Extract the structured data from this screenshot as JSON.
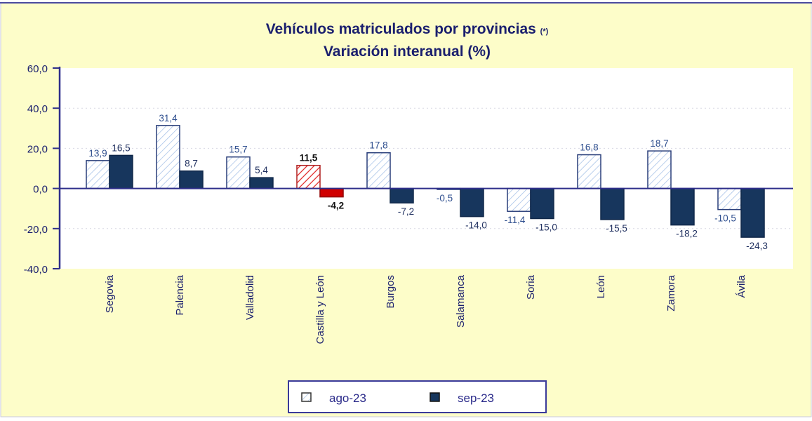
{
  "chart_data": {
    "type": "bar",
    "title": "Vehículos matriculados por provincias",
    "title_note": "(*)",
    "subtitle": "Variación interanual (%)",
    "categories": [
      "Segovia",
      "Palencia",
      "Valladolid",
      "Castilla y León",
      "Burgos",
      "Salamanca",
      "Soria",
      "León",
      "Zamora",
      "Ávila"
    ],
    "series": [
      {
        "name": "ago-23",
        "values": [
          13.9,
          31.4,
          15.7,
          11.5,
          17.8,
          -0.5,
          -11.4,
          16.8,
          18.7,
          -10.5
        ]
      },
      {
        "name": "sep-23",
        "values": [
          16.5,
          8.7,
          5.4,
          -4.2,
          -7.2,
          -14.0,
          -15.0,
          -15.5,
          -18.2,
          -24.3
        ]
      }
    ],
    "value_labels": {
      "ago-23": [
        "13,9",
        "31,4",
        "15,7",
        "11,5",
        "17,8",
        "-0,5",
        "-11,4",
        "16,8",
        "18,7",
        "-10,5"
      ],
      "sep-23": [
        "16,5",
        "8,7",
        "5,4",
        "-4,2",
        "-7,2",
        "-14,0",
        "-15,0",
        "-15,5",
        "-18,2",
        "-24,3"
      ]
    },
    "highlight_category": "Castilla y León",
    "ylim": [
      -40,
      60
    ],
    "yticks": [
      "60,0",
      "40,0",
      "20,0",
      "0,0",
      "-20,0",
      "-40,0"
    ],
    "ytick_values": [
      60,
      40,
      20,
      0,
      -20,
      -40
    ],
    "grid": "horizontal dotted",
    "legend_placement": "bottom",
    "colors": {
      "background": "#fdfdc9",
      "axis": "#2e2e8a",
      "ago": "#ffffff",
      "ago_hatch": "#a9c4e8",
      "sep": "#17365d",
      "highlight_ago_hatch": "#e02020",
      "highlight_sep": "#d00000",
      "text": "#1a1f6e"
    }
  }
}
